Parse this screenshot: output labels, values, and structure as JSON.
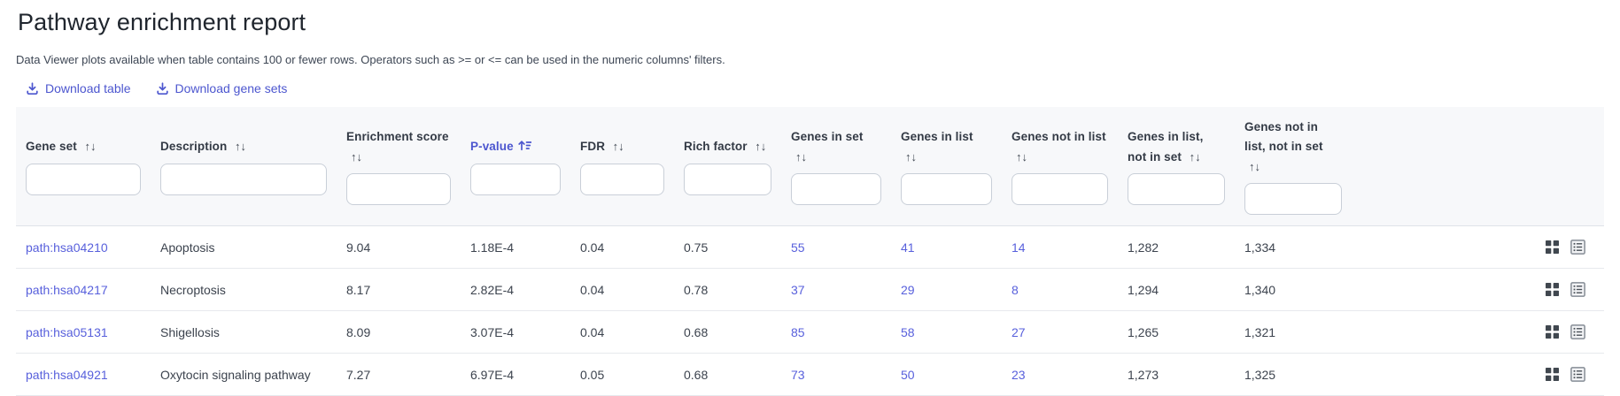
{
  "page": {
    "title": "Pathway enrichment report",
    "subtitle": "Data Viewer plots available when table contains 100 or fewer rows. Operators such as >= or <= can be used in the numeric columns' filters."
  },
  "toolbar": {
    "download_table_label": "Download table",
    "download_gene_sets_label": "Download gene sets"
  },
  "colors": {
    "accent-link": "#4c56cf",
    "cell-link": "#5860dc",
    "header-text": "#333a45",
    "body-text": "#3c434e",
    "header-bg": "#f7f8fa"
  },
  "table": {
    "sorted_column": "P-value",
    "sort_direction": "ascending",
    "sort_icons": {
      "unsorted": "↑↓"
    },
    "columns": [
      {
        "key": "gene_set",
        "label": "Gene set",
        "sorted": false,
        "link": true
      },
      {
        "key": "description",
        "label": "Description",
        "sorted": false,
        "link": false
      },
      {
        "key": "enrichment_score",
        "label": "Enrichment score",
        "sorted": false,
        "link": false
      },
      {
        "key": "p_value",
        "label": "P-value",
        "sorted": true,
        "link": false
      },
      {
        "key": "fdr",
        "label": "FDR",
        "sorted": false,
        "link": false
      },
      {
        "key": "rich_factor",
        "label": "Rich factor",
        "sorted": false,
        "link": false
      },
      {
        "key": "genes_in_set",
        "label": "Genes in set",
        "sorted": false,
        "link": true
      },
      {
        "key": "genes_in_list",
        "label": "Genes in list",
        "sorted": false,
        "link": true
      },
      {
        "key": "genes_not_in_list",
        "label": "Genes not in list",
        "sorted": false,
        "link": true
      },
      {
        "key": "genes_in_list_not_in_set",
        "label": "Genes in list, not in set",
        "sorted": false,
        "link": false
      },
      {
        "key": "genes_not_in_list_not_in_set",
        "label": "Genes not in list, not in set",
        "sorted": false,
        "link": false
      }
    ],
    "rows": [
      {
        "gene_set": "path:hsa04210",
        "description": "Apoptosis",
        "enrichment_score": "9.04",
        "p_value": "1.18E-4",
        "fdr": "0.04",
        "rich_factor": "0.75",
        "genes_in_set": "55",
        "genes_in_list": "41",
        "genes_not_in_list": "14",
        "genes_in_list_not_in_set": "1,282",
        "genes_not_in_list_not_in_set": "1,334"
      },
      {
        "gene_set": "path:hsa04217",
        "description": "Necroptosis",
        "enrichment_score": "8.17",
        "p_value": "2.82E-4",
        "fdr": "0.04",
        "rich_factor": "0.78",
        "genes_in_set": "37",
        "genes_in_list": "29",
        "genes_not_in_list": "8",
        "genes_in_list_not_in_set": "1,294",
        "genes_not_in_list_not_in_set": "1,340"
      },
      {
        "gene_set": "path:hsa05131",
        "description": "Shigellosis",
        "enrichment_score": "8.09",
        "p_value": "3.07E-4",
        "fdr": "0.04",
        "rich_factor": "0.68",
        "genes_in_set": "85",
        "genes_in_list": "58",
        "genes_not_in_list": "27",
        "genes_in_list_not_in_set": "1,265",
        "genes_not_in_list_not_in_set": "1,321"
      },
      {
        "gene_set": "path:hsa04921",
        "description": "Oxytocin signaling pathway",
        "enrichment_score": "7.27",
        "p_value": "6.97E-4",
        "fdr": "0.05",
        "rich_factor": "0.68",
        "genes_in_set": "73",
        "genes_in_list": "50",
        "genes_not_in_list": "23",
        "genes_in_list_not_in_set": "1,273",
        "genes_not_in_list_not_in_set": "1,325"
      }
    ]
  }
}
